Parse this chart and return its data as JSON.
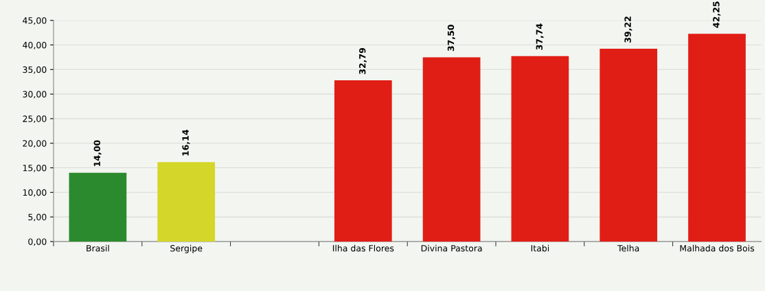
{
  "chart_data": {
    "type": "bar",
    "categories": [
      "Brasil",
      "Sergipe",
      null,
      "Ilha das Flores",
      "Divina Pastora",
      "Itabi",
      "Telha",
      "Malhada dos Bois"
    ],
    "values": [
      14.0,
      16.14,
      null,
      32.79,
      37.5,
      37.74,
      39.22,
      42.25
    ],
    "colors": [
      "#2b8a2e",
      "#d4d629",
      "#ffffff",
      "#e01e16",
      "#e01e16",
      "#e01e16",
      "#e01e16",
      "#e01e16"
    ],
    "value_labels": [
      "14,00",
      "16,14",
      null,
      "32,79",
      "37,50",
      "37,74",
      "39,22",
      "42,25"
    ],
    "ylim": [
      0,
      45
    ],
    "yticks": [
      {
        "value": 0,
        "label": "0,00"
      },
      {
        "value": 5,
        "label": "5,00"
      },
      {
        "value": 10,
        "label": "10,00"
      },
      {
        "value": 15,
        "label": "15,00"
      },
      {
        "value": 20,
        "label": "20,00"
      },
      {
        "value": 25,
        "label": "25,00"
      },
      {
        "value": 30,
        "label": "30,00"
      },
      {
        "value": 35,
        "label": "35,00"
      },
      {
        "value": 40,
        "label": "40,00"
      },
      {
        "value": 45,
        "label": "45,00"
      }
    ],
    "grid": "y"
  }
}
